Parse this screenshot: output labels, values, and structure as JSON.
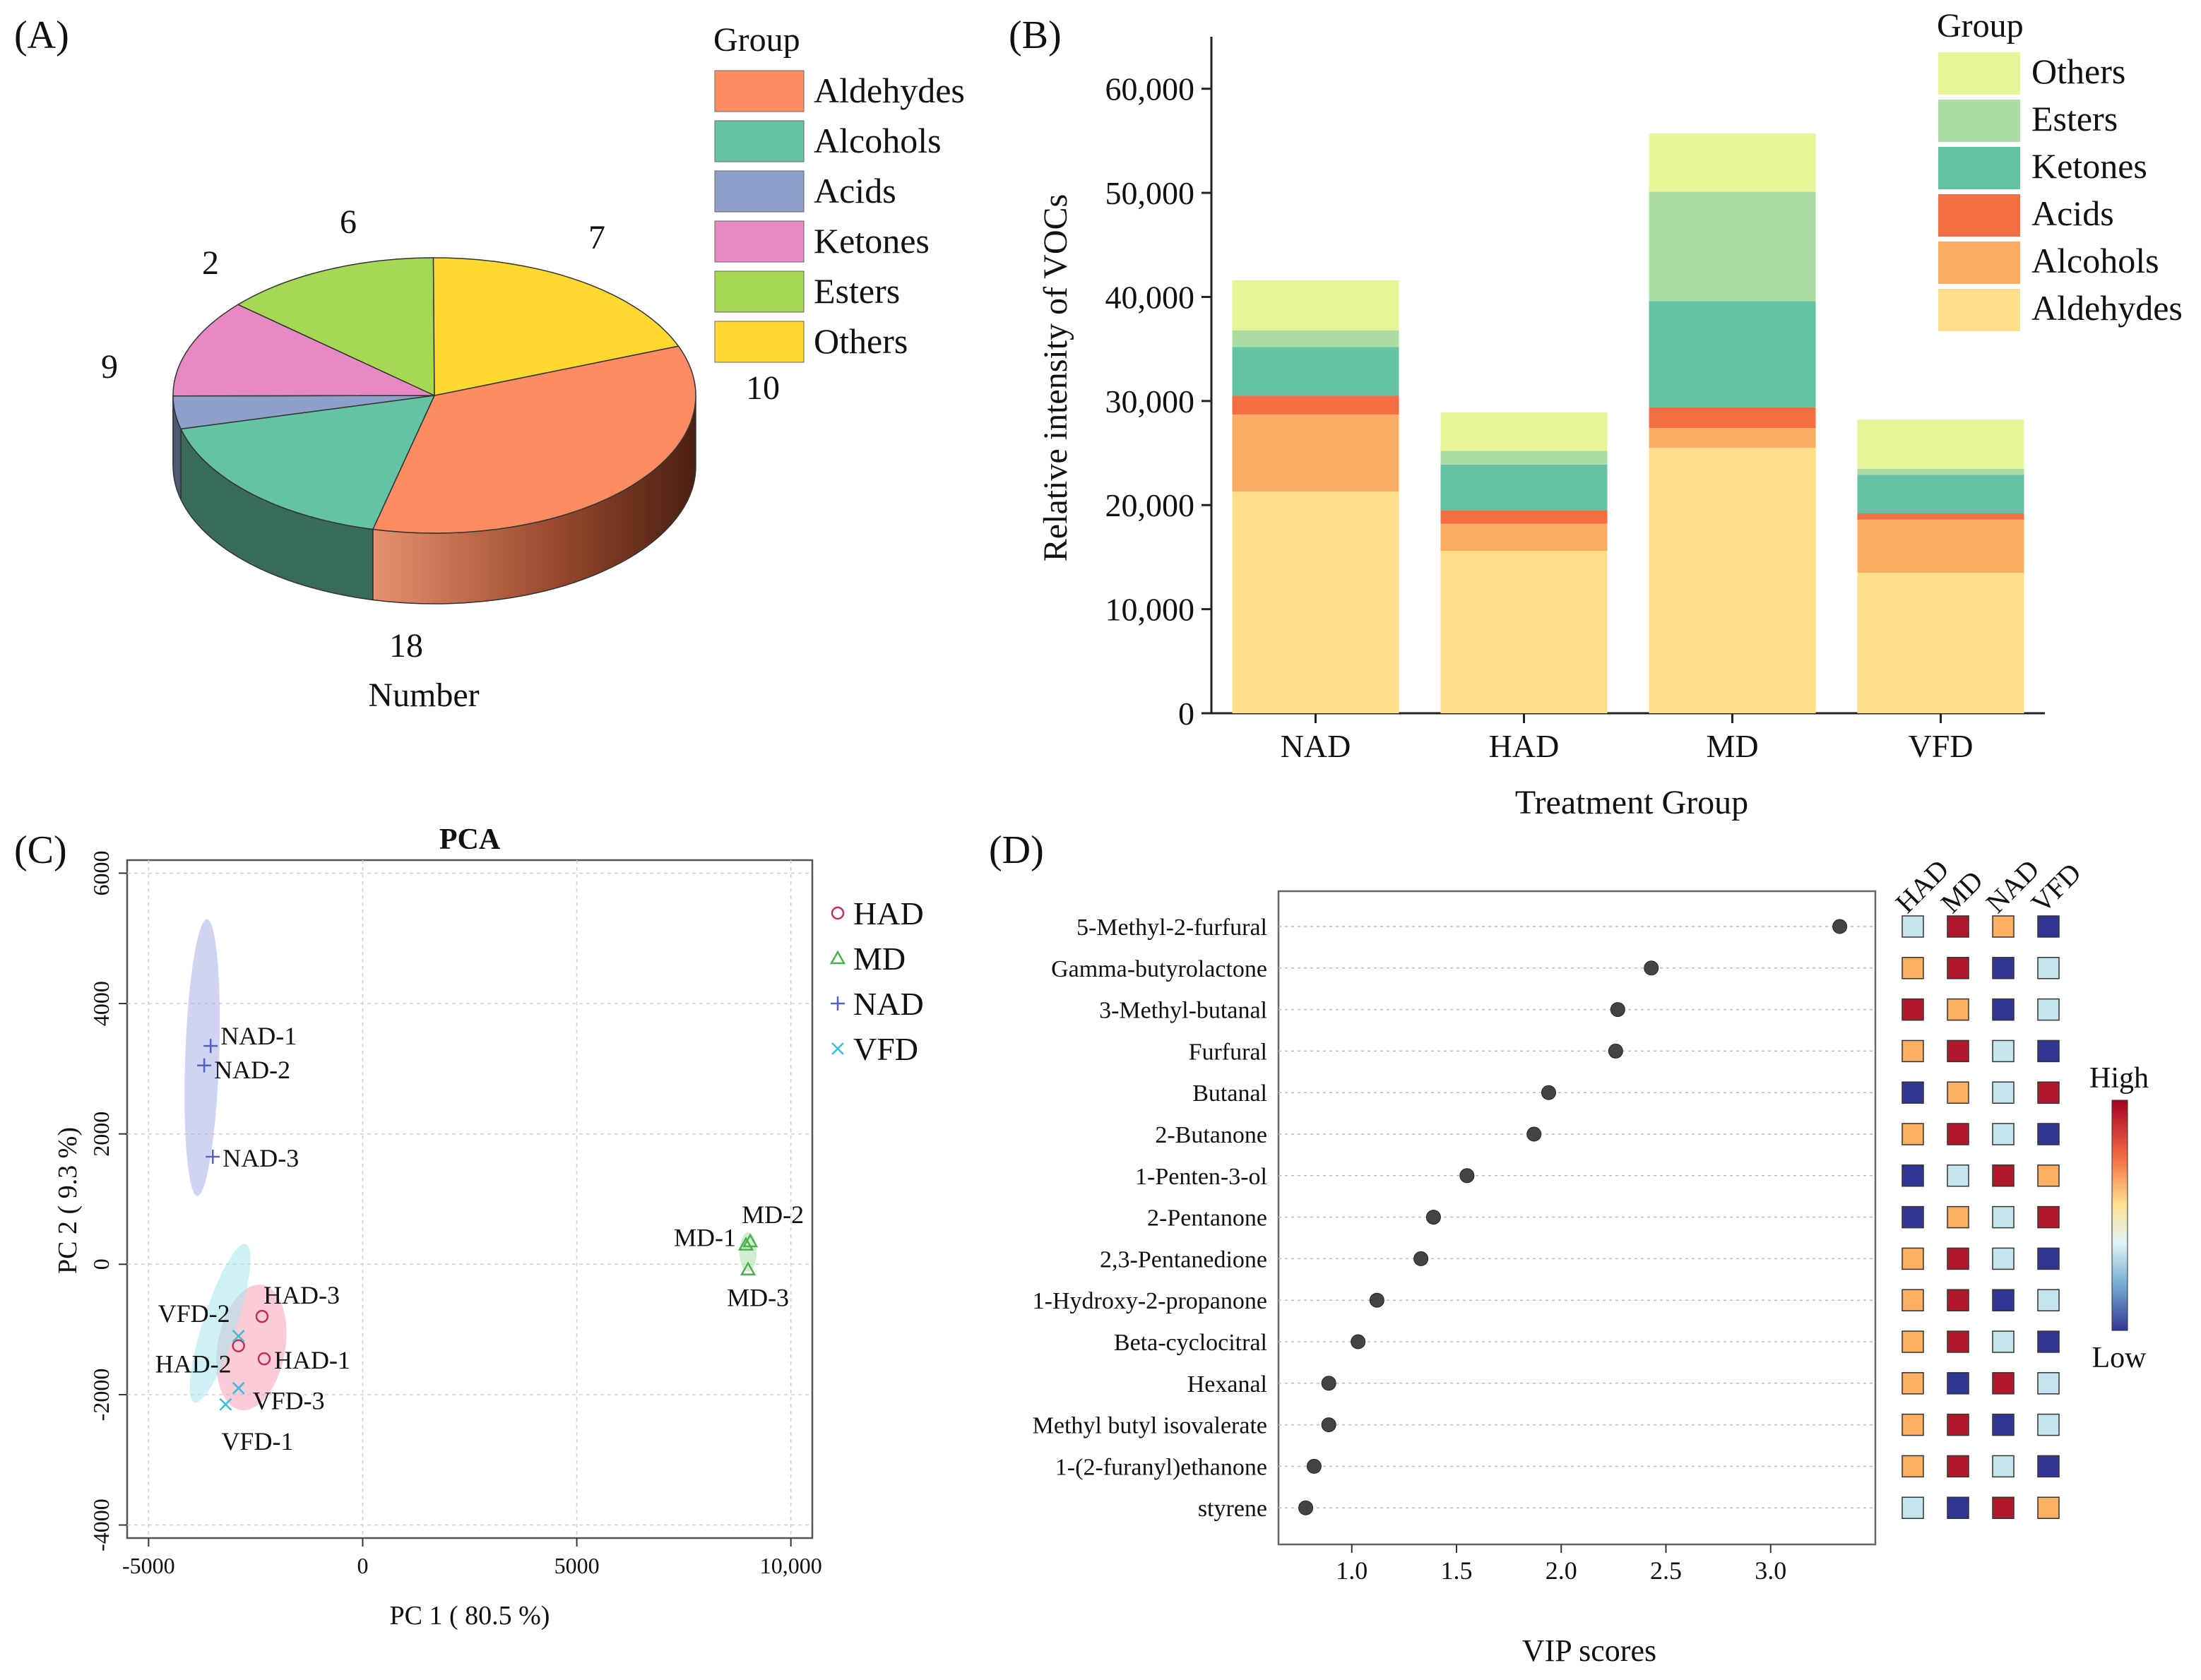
{
  "panels": {
    "a": "(A)",
    "b": "(B)",
    "c": "(C)",
    "d": "(D)"
  },
  "chart_data": [
    {
      "type": "pie",
      "panel": "(A)",
      "xlabel": "Number",
      "legend_title": "Group",
      "categories": [
        "Aldehydes",
        "Alcohols",
        "Acids",
        "Ketones",
        "Esters",
        "Others"
      ],
      "values": [
        18,
        9,
        2,
        6,
        7,
        10
      ],
      "colors": [
        "#fc8d62",
        "#66c2a5",
        "#8da0cb",
        "#e78ac3",
        "#a6d854",
        "#ffd92f"
      ],
      "legend_placement": "right"
    },
    {
      "type": "bar",
      "stacked": true,
      "panel": "(B)",
      "xlabel": "Treatment Group",
      "ylabel": "Relative intensity of VOCs",
      "ylim": [
        0,
        65000
      ],
      "yticks": [
        0,
        10000,
        20000,
        30000,
        40000,
        50000,
        60000
      ],
      "ytick_labels": [
        "0",
        "10,000",
        "20,000",
        "30,000",
        "40,000",
        "50,000",
        "60,000"
      ],
      "legend_title": "Group",
      "categories": [
        "NAD",
        "HAD",
        "MD",
        "VFD"
      ],
      "series": [
        {
          "name": "Aldehydes",
          "color": "#fdde8a",
          "values": [
            21300,
            15600,
            25500,
            13500
          ]
        },
        {
          "name": "Alcohols",
          "color": "#fdad61",
          "values": [
            7400,
            2600,
            1900,
            5100
          ]
        },
        {
          "name": "Acids",
          "color": "#f46d43",
          "values": [
            1800,
            1300,
            2000,
            600
          ]
        },
        {
          "name": "Ketones",
          "color": "#66c2a5",
          "values": [
            4700,
            4400,
            10200,
            3700
          ]
        },
        {
          "name": "Esters",
          "color": "#abdda4",
          "values": [
            1600,
            1300,
            10500,
            600
          ]
        },
        {
          "name": "Others",
          "color": "#e6f598",
          "values": [
            4800,
            3700,
            5600,
            4700
          ]
        }
      ]
    },
    {
      "type": "scatter",
      "panel": "(C)",
      "title": "PCA",
      "xlabel": "PC 1 ( 80.5 %)",
      "ylabel": "PC 2 ( 9.3 %)",
      "xlim": [
        -5500,
        10500
      ],
      "ylim": [
        -4200,
        6200
      ],
      "xticks": [
        -5000,
        0,
        5000,
        10000
      ],
      "xtick_labels": [
        "-5000",
        "0",
        "5000",
        "10,000"
      ],
      "yticks": [
        -4000,
        -2000,
        0,
        2000,
        4000,
        6000
      ],
      "ytick_labels": [
        "-4000",
        "-2000",
        "0",
        "2000",
        "4000",
        "6000"
      ],
      "grid": true,
      "series": [
        {
          "name": "HAD",
          "marker": "circle",
          "color": "#c0305a",
          "ellipse_color": "#f4a3b8",
          "points": [
            {
              "label": "HAD-1",
              "x": -2300,
              "y": -1450
            },
            {
              "label": "HAD-2",
              "x": -2900,
              "y": -1250
            },
            {
              "label": "HAD-3",
              "x": -2350,
              "y": -800
            }
          ]
        },
        {
          "name": "MD",
          "marker": "triangle",
          "color": "#4caf50",
          "ellipse_color": "#a8e0a8",
          "points": [
            {
              "label": "MD-1",
              "x": 8950,
              "y": 300
            },
            {
              "label": "MD-2",
              "x": 9050,
              "y": 350
            },
            {
              "label": "MD-3",
              "x": 9000,
              "y": -80
            }
          ]
        },
        {
          "name": "NAD",
          "marker": "plus",
          "color": "#5561c0",
          "ellipse_color": "#a9b0e8",
          "points": [
            {
              "label": "NAD-1",
              "x": -3550,
              "y": 3350
            },
            {
              "label": "NAD-2",
              "x": -3700,
              "y": 3050
            },
            {
              "label": "NAD-3",
              "x": -3500,
              "y": 1650
            }
          ]
        },
        {
          "name": "VFD",
          "marker": "x",
          "color": "#38c0d8",
          "ellipse_color": "#a6e6ef",
          "points": [
            {
              "label": "VFD-1",
              "x": -3200,
              "y": -2150
            },
            {
              "label": "VFD-2",
              "x": -2900,
              "y": -1100
            },
            {
              "label": "VFD-3",
              "x": -2900,
              "y": -1900
            }
          ]
        }
      ]
    },
    {
      "type": "scatter",
      "subtype": "vip-dot",
      "panel": "(D)",
      "xlabel": "VIP scores",
      "xlim": [
        0.65,
        3.5
      ],
      "xticks": [
        1.0,
        1.5,
        2.0,
        2.5,
        3.0
      ],
      "xtick_labels": [
        "1.0",
        "1.5",
        "2.0",
        "2.5",
        "3.0"
      ],
      "items": [
        {
          "name": "5-Methyl-2-furfural",
          "vip": 3.33
        },
        {
          "name": "Gamma-butyrolactone",
          "vip": 2.43
        },
        {
          "name": "3-Methyl-butanal",
          "vip": 2.27
        },
        {
          "name": "Furfural",
          "vip": 2.26
        },
        {
          "name": "Butanal",
          "vip": 1.94
        },
        {
          "name": "2-Butanone",
          "vip": 1.87
        },
        {
          "name": "1-Penten-3-ol",
          "vip": 1.55
        },
        {
          "name": "2-Pentanone",
          "vip": 1.39
        },
        {
          "name": "2,3-Pentanedione",
          "vip": 1.33
        },
        {
          "name": "1-Hydroxy-2-propanone",
          "vip": 1.12
        },
        {
          "name": "Beta-cyclocitral",
          "vip": 1.03
        },
        {
          "name": "Hexanal",
          "vip": 0.89
        },
        {
          "name": "Methyl butyl isovalerate",
          "vip": 0.89
        },
        {
          "name": "1-(2-furanyl)ethanone",
          "vip": 0.82
        },
        {
          "name": "styrene",
          "vip": 0.78
        }
      ]
    },
    {
      "type": "heatmap",
      "panel": "(D)",
      "columns": [
        "HAD",
        "MD",
        "NAD",
        "VFD"
      ],
      "scale_high": "High",
      "scale_low": "Low",
      "level_colors": {
        "low": "#313695",
        "midlow": "#c6e6ef",
        "midhigh": "#fdae61",
        "high": "#b2182b"
      },
      "levels": [
        [
          "midlow",
          "high",
          "midhigh",
          "low"
        ],
        [
          "midhigh",
          "high",
          "low",
          "midlow"
        ],
        [
          "high",
          "midhigh",
          "low",
          "midlow"
        ],
        [
          "midhigh",
          "high",
          "midlow",
          "low"
        ],
        [
          "low",
          "midhigh",
          "midlow",
          "high"
        ],
        [
          "midhigh",
          "high",
          "midlow",
          "low"
        ],
        [
          "low",
          "midlow",
          "high",
          "midhigh"
        ],
        [
          "low",
          "midhigh",
          "midlow",
          "high"
        ],
        [
          "midhigh",
          "high",
          "midlow",
          "low"
        ],
        [
          "midhigh",
          "high",
          "low",
          "midlow"
        ],
        [
          "midhigh",
          "high",
          "midlow",
          "low"
        ],
        [
          "midhigh",
          "low",
          "high",
          "midlow"
        ],
        [
          "midhigh",
          "high",
          "low",
          "midlow"
        ],
        [
          "midhigh",
          "high",
          "midlow",
          "low"
        ],
        [
          "midlow",
          "low",
          "high",
          "midhigh"
        ]
      ]
    }
  ]
}
